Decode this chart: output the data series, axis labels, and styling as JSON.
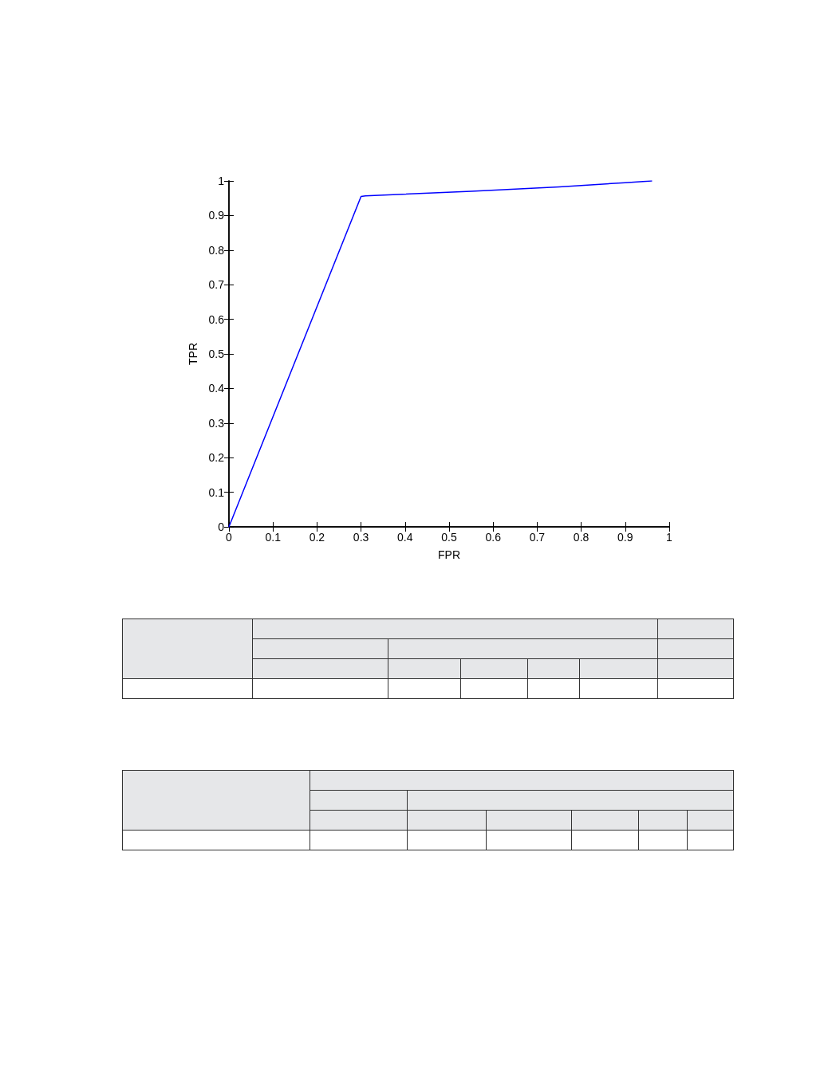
{
  "chart_data": {
    "type": "line",
    "xlabel": "FPR",
    "ylabel": "TPR",
    "x": [
      0,
      0.3,
      0.31,
      0.55,
      0.75,
      0.9,
      0.96
    ],
    "series": [
      {
        "color": "#0000ff",
        "values": [
          0,
          0.955,
          0.957,
          0.97,
          0.983,
          0.995,
          1
        ]
      }
    ],
    "xlim": [
      0,
      1
    ],
    "ylim": [
      0,
      1
    ],
    "xticks": [
      0,
      0.1,
      0.2,
      0.3,
      0.4,
      0.5,
      0.6,
      0.7,
      0.8,
      0.9,
      1
    ],
    "yticks": [
      0,
      0.1,
      0.2,
      0.3,
      0.4,
      0.5,
      0.6,
      0.7,
      0.8,
      0.9,
      1
    ],
    "grid": false,
    "marker": "none",
    "line_style": "solid"
  }
}
